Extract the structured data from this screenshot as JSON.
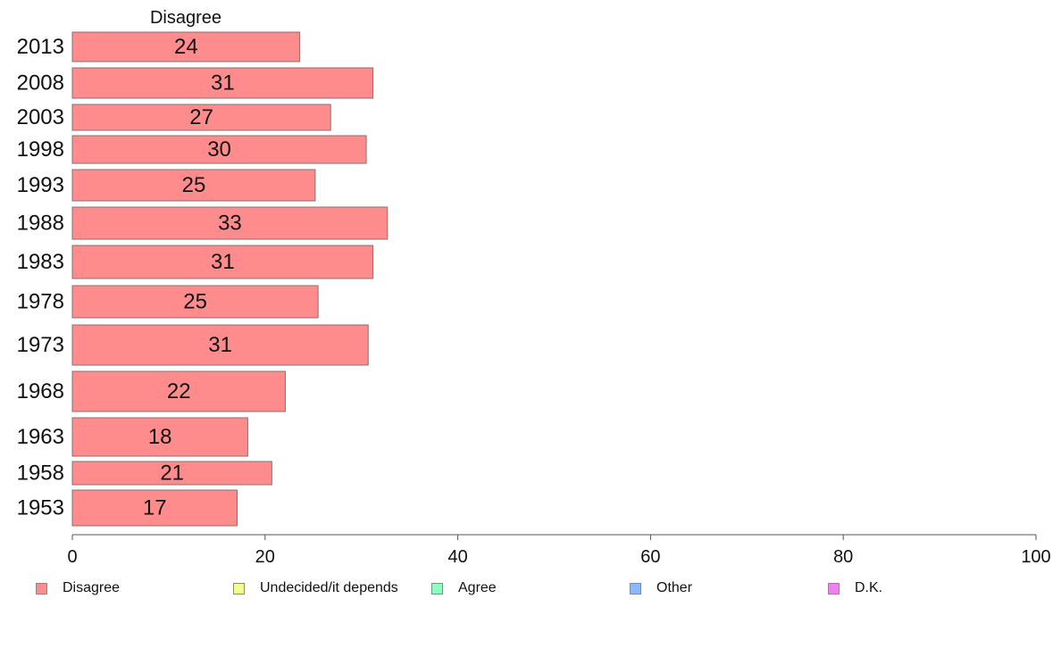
{
  "chart_data": {
    "type": "bar",
    "orientation": "horizontal",
    "panel_title": "Disagree",
    "categories": [
      "2013",
      "2008",
      "2003",
      "1998",
      "1993",
      "1988",
      "1983",
      "1978",
      "1973",
      "1968",
      "1963",
      "1958",
      "1953"
    ],
    "series": [
      {
        "name": "Disagree",
        "color": "#ff8c8c",
        "values": [
          23.6,
          31.2,
          26.8,
          30.5,
          25.2,
          32.7,
          31.2,
          25.5,
          30.7,
          22.1,
          18.2,
          20.7,
          17.1
        ],
        "labels": [
          "24",
          "31",
          "27",
          "30",
          "25",
          "33",
          "31",
          "25",
          "31",
          "22",
          "18",
          "21",
          "17"
        ]
      }
    ],
    "xlim": [
      0,
      100
    ],
    "xticks": [
      "0",
      "20",
      "40",
      "60",
      "80",
      "100"
    ],
    "xlabel": "",
    "ylabel": "",
    "grid": false,
    "legend_position": "bottom",
    "legend": [
      {
        "label": "Disagree",
        "color": "#ff8c8c"
      },
      {
        "label": "Undecided/it depends",
        "color": "#f2ff8c"
      },
      {
        "label": "Agree",
        "color": "#8cffc0"
      },
      {
        "label": "Other",
        "color": "#8cb8ff"
      },
      {
        "label": "D.K.",
        "color": "#ee80f0"
      }
    ]
  }
}
